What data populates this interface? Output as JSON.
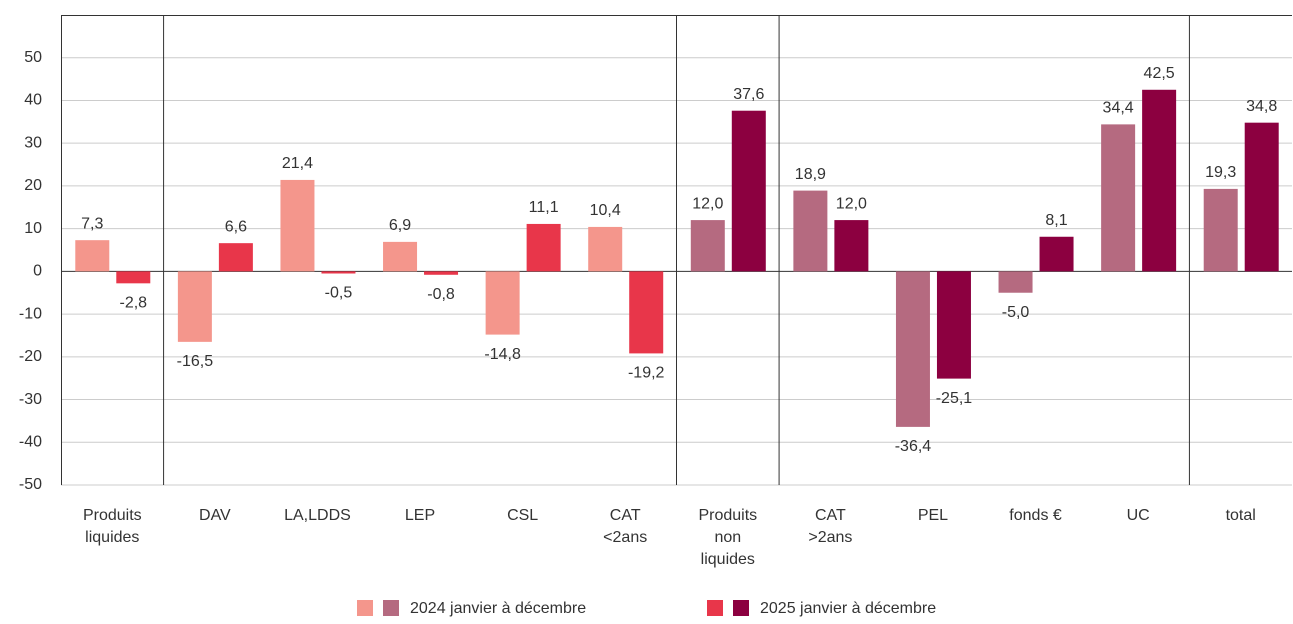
{
  "chart_data": {
    "type": "bar",
    "categories": [
      [
        "Produits",
        "liquides"
      ],
      [
        "DAV"
      ],
      [
        "LA,LDDS"
      ],
      [
        "LEP"
      ],
      [
        "CSL"
      ],
      [
        "CAT",
        "<2ans"
      ],
      [
        "Produits",
        "non",
        "liquides"
      ],
      [
        "CAT",
        ">2ans"
      ],
      [
        "PEL"
      ],
      [
        "fonds €"
      ],
      [
        "UC"
      ],
      [
        "total"
      ]
    ],
    "series": [
      {
        "name": "2024 janvier à décembre",
        "colors": [
          "#f4968c",
          "#f4968c",
          "#f4968c",
          "#f4968c",
          "#f4968c",
          "#f4968c",
          "#b56a80",
          "#b56a80",
          "#b56a80",
          "#b56a80",
          "#b56a80",
          "#b56a80"
        ],
        "values": [
          7.3,
          -16.5,
          21.4,
          6.9,
          -14.8,
          10.4,
          12.0,
          18.9,
          -36.4,
          -5.0,
          34.4,
          19.3
        ],
        "value_labels": [
          "7,3",
          "-16,5",
          "21,4",
          "6,9",
          "-14,8",
          "10,4",
          "12,0",
          "18,9",
          "-36,4",
          "-5,0",
          "34,4",
          "19,3"
        ]
      },
      {
        "name": "2025 janvier à décembre",
        "colors": [
          "#e8364a",
          "#e8364a",
          "#e8364a",
          "#e8364a",
          "#e8364a",
          "#e8364a",
          "#8c0040",
          "#8c0040",
          "#8c0040",
          "#8c0040",
          "#8c0040",
          "#8c0040"
        ],
        "values": [
          -2.8,
          6.6,
          -0.5,
          -0.8,
          11.1,
          -19.2,
          37.6,
          12.0,
          -25.1,
          8.1,
          42.5,
          34.8
        ],
        "value_labels": [
          "-2,8",
          "6,6",
          "-0,5",
          "-0,8",
          "11,1",
          "-19,2",
          "37,6",
          "12,0",
          "-25,1",
          "8,1",
          "42,5",
          "34,8"
        ]
      }
    ],
    "ylim": [
      -50,
      60
    ],
    "yticks": [
      -50,
      -40,
      -30,
      -20,
      -10,
      0,
      10,
      20,
      30,
      40,
      50
    ],
    "grid": true
  }
}
